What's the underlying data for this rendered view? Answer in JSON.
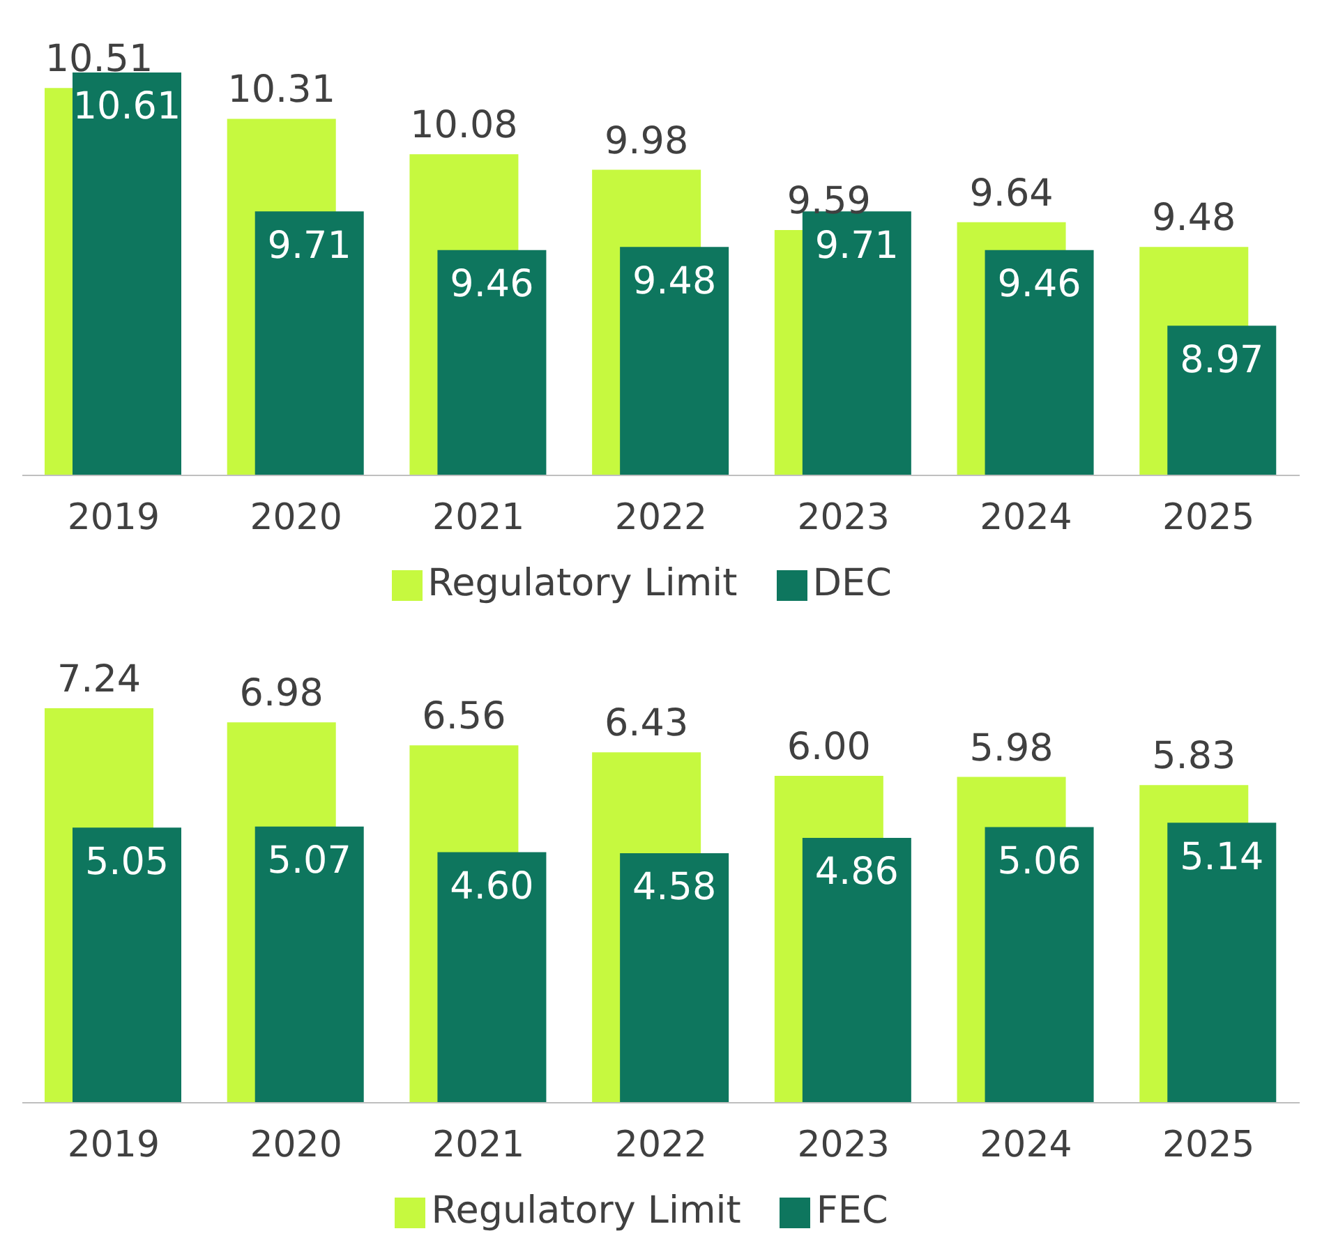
{
  "chart_data": [
    {
      "type": "bar",
      "categories": [
        "2019",
        "2020",
        "2021",
        "2022",
        "2023",
        "2024",
        "2025"
      ],
      "series": [
        {
          "name": "Regulatory Limit",
          "color": "#c6f93f",
          "values": [
            10.51,
            10.31,
            10.08,
            9.98,
            9.59,
            9.64,
            9.48
          ],
          "value_labels": [
            "10.51",
            "10.31",
            "10.08",
            "9.98",
            "9.59",
            "9.64",
            "9.48"
          ]
        },
        {
          "name": "DEC",
          "color": "#0e765e",
          "values": [
            10.61,
            9.71,
            9.46,
            9.48,
            9.71,
            9.46,
            8.97
          ],
          "value_labels": [
            "10.61",
            "9.71",
            "9.46",
            "9.48",
            "9.71",
            "9.46",
            "8.97"
          ]
        }
      ],
      "ylim": [
        8,
        10.61
      ],
      "tick_labels": "x",
      "legend": "bottom"
    },
    {
      "type": "bar",
      "categories": [
        "2019",
        "2020",
        "2021",
        "2022",
        "2023",
        "2024",
        "2025"
      ],
      "series": [
        {
          "name": "Regulatory Limit",
          "color": "#c6f93f",
          "values": [
            7.24,
            6.98,
            6.56,
            6.43,
            6.0,
            5.98,
            5.83
          ],
          "value_labels": [
            "7.24",
            "6.98",
            "6.56",
            "6.43",
            "6.00",
            "5.98",
            "5.83"
          ]
        },
        {
          "name": "FEC",
          "color": "#0e765e",
          "values": [
            5.05,
            5.07,
            4.6,
            4.58,
            4.86,
            5.06,
            5.14
          ],
          "value_labels": [
            "5.05",
            "5.07",
            "4.60",
            "4.58",
            "4.86",
            "5.06",
            "5.14"
          ]
        }
      ],
      "ylim": [
        0,
        7.24
      ],
      "tick_labels": "x",
      "legend": "bottom"
    }
  ]
}
